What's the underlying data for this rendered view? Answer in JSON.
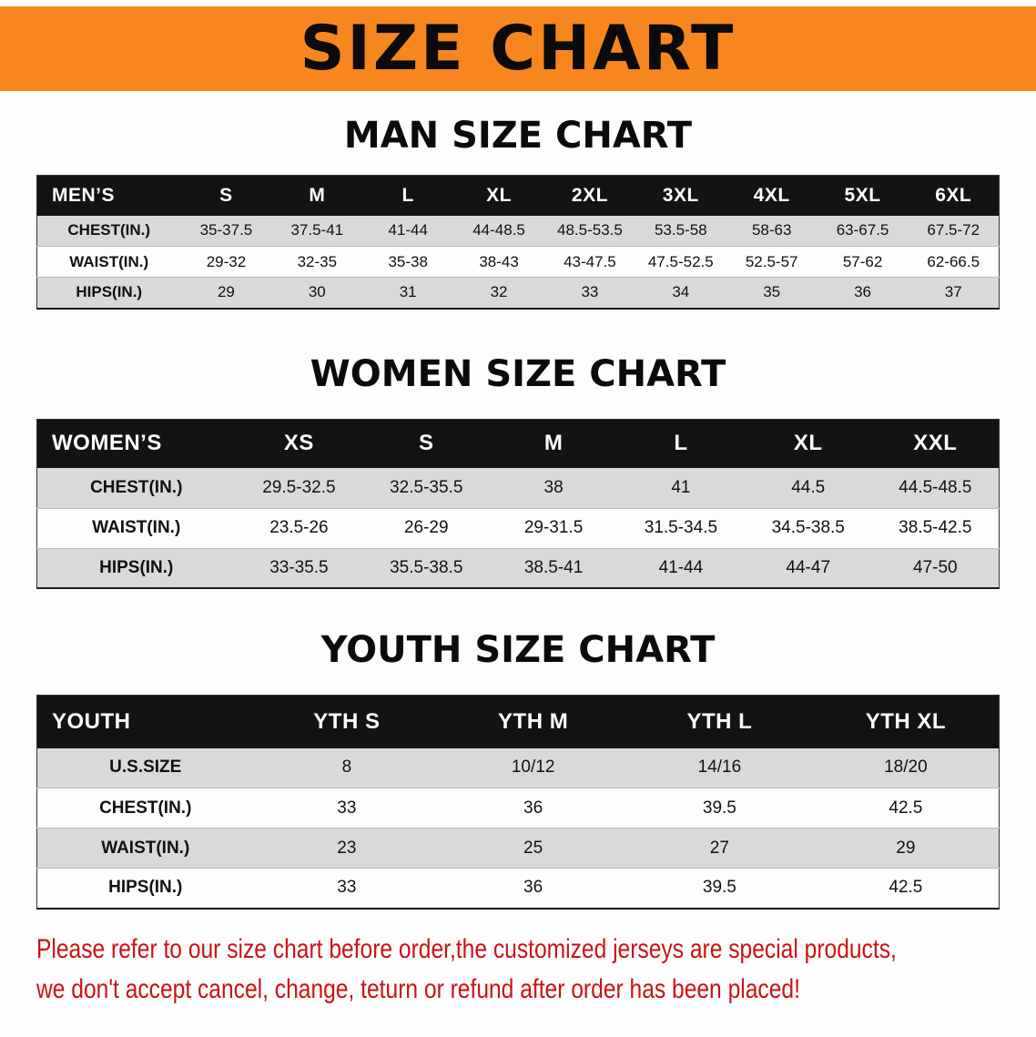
{
  "banner": {
    "title": "SIZE CHART",
    "bg_color": "#f6861d"
  },
  "colors": {
    "banner_orange": "#f6861d",
    "table_header_black": "#131313",
    "row_gray": "#d9d9d9",
    "disclaimer_red": "#cc1212"
  },
  "sections": {
    "men": {
      "heading": "MAN SIZE CHART",
      "table": {
        "header": [
          "MEN’S",
          "S",
          "M",
          "L",
          "XL",
          "2XL",
          "3XL",
          "4XL",
          "5XL",
          "6XL"
        ],
        "rows": [
          {
            "label": "CHEST(IN.)",
            "values": [
              "35-37.5",
              "37.5-41",
              "41-44",
              "44-48.5",
              "48.5-53.5",
              "53.5-58",
              "58-63",
              "63-67.5",
              "67.5-72"
            ]
          },
          {
            "label": "WAIST(IN.)",
            "values": [
              "29-32",
              "32-35",
              "35-38",
              "38-43",
              "43-47.5",
              "47.5-52.5",
              "52.5-57",
              "57-62",
              "62-66.5"
            ]
          },
          {
            "label": "HIPS(IN.)",
            "values": [
              "29",
              "30",
              "31",
              "32",
              "33",
              "34",
              "35",
              "36",
              "37"
            ]
          }
        ]
      }
    },
    "women": {
      "heading": "WOMEN SIZE CHART",
      "table": {
        "header": [
          "WOMEN’S",
          "XS",
          "S",
          "M",
          "L",
          "XL",
          "XXL"
        ],
        "rows": [
          {
            "label": "CHEST(IN.)",
            "values": [
              "29.5-32.5",
              "32.5-35.5",
              "38",
              "41",
              "44.5",
              "44.5-48.5"
            ]
          },
          {
            "label": "WAIST(IN.)",
            "values": [
              "23.5-26",
              "26-29",
              "29-31.5",
              "31.5-34.5",
              "34.5-38.5",
              "38.5-42.5"
            ]
          },
          {
            "label": "HIPS(IN.)",
            "values": [
              "33-35.5",
              "35.5-38.5",
              "38.5-41",
              "41-44",
              "44-47",
              "47-50"
            ]
          }
        ]
      }
    },
    "youth": {
      "heading": "YOUTH SIZE CHART",
      "table": {
        "header": [
          "YOUTH",
          "YTH S",
          "YTH M",
          "YTH L",
          "YTH XL"
        ],
        "rows": [
          {
            "label": "U.S.SIZE",
            "values": [
              "8",
              "10/12",
              "14/16",
              "18/20"
            ]
          },
          {
            "label": "CHEST(IN.)",
            "values": [
              "33",
              "36",
              "39.5",
              "42.5"
            ]
          },
          {
            "label": "WAIST(IN.)",
            "values": [
              "23",
              "25",
              "27",
              "29"
            ]
          },
          {
            "label": "HIPS(IN.)",
            "values": [
              "33",
              "36",
              "39.5",
              "42.5"
            ]
          }
        ]
      }
    }
  },
  "disclaimer": {
    "line1": "Please refer to our size chart before order,the customized jerseys are special products,",
    "line2": "we don't accept cancel, change, teturn or refund after order has been placed!"
  }
}
